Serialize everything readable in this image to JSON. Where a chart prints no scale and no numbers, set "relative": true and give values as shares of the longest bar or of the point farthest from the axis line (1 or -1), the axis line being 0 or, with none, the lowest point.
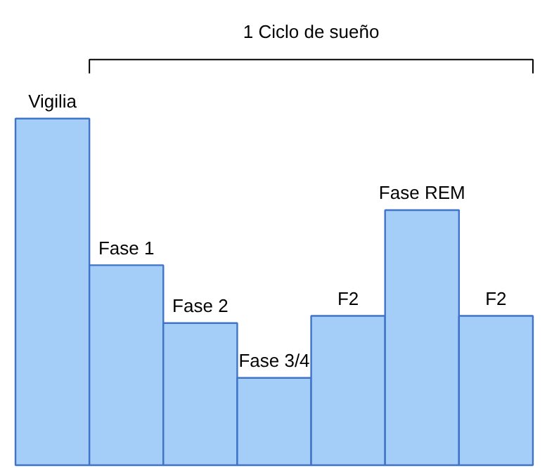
{
  "chart_data": {
    "type": "bar",
    "relative": true,
    "categories": [
      "Vigilia",
      "Fase 1",
      "Fase 2",
      "Fase 3/4",
      "F2",
      "Fase REM",
      "F2"
    ],
    "values": [
      1,
      0.577,
      0.41,
      0.252,
      0.431,
      0.736,
      0.431
    ],
    "color": "#a4cdf8",
    "annotations": [
      "1 Ciclo de sueño"
    ]
  }
}
